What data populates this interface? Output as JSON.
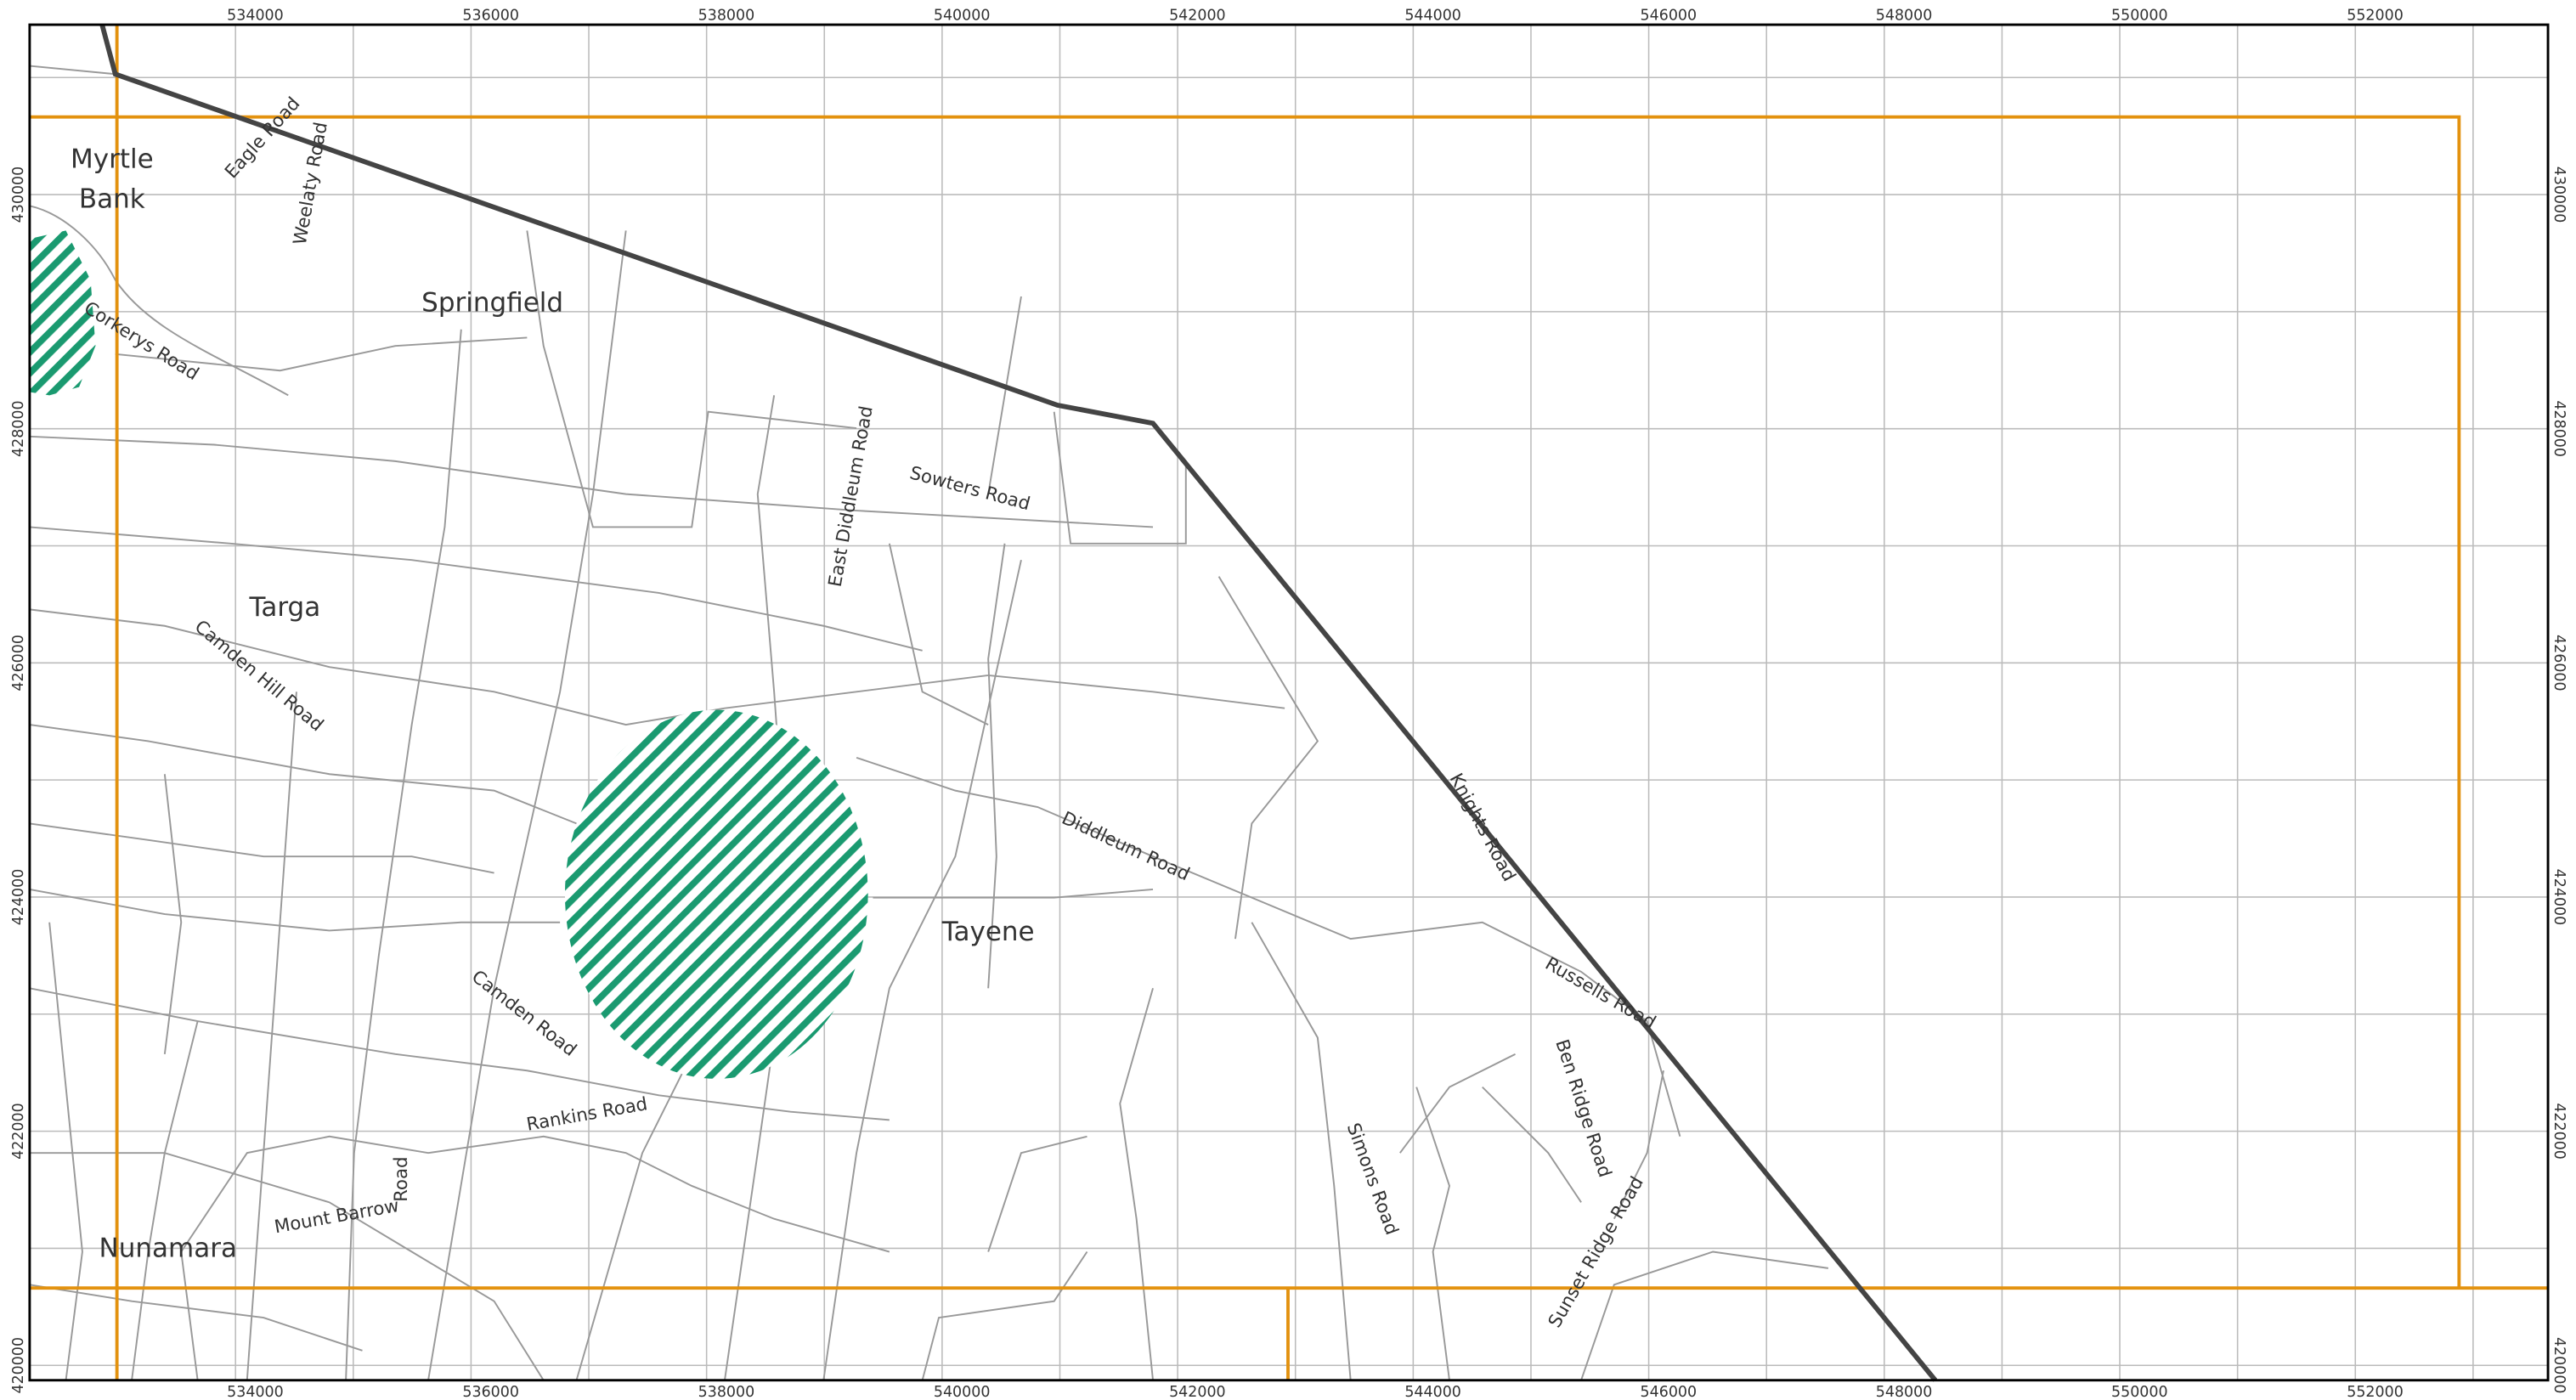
{
  "map": {
    "xlim": [
      532252,
      553636
    ],
    "ylim": [
      419873,
      431451
    ],
    "xticks": [
      534000,
      536000,
      538000,
      540000,
      542000,
      544000,
      546000,
      548000,
      550000,
      552000
    ],
    "yticks": [
      420000,
      422000,
      424000,
      426000,
      428000,
      430000
    ],
    "places": [
      [
        "Myrtle",
        "Bank"
      ],
      [
        "Springfield"
      ],
      [
        "Targa"
      ],
      [
        "Tayene"
      ],
      [
        "Nunamara"
      ]
    ],
    "roads": [
      "Eagle Road",
      "Weelaty Road",
      "Corkerys Road",
      "East Diddleum Road",
      "Sowters Road",
      "Camden Hill Road",
      "Diddleum Road",
      "Knights Road",
      "Russells Road",
      "Camden Road",
      "Rankins Road",
      "Ben Ridge Road",
      "Simons Road",
      "Mount Barrow",
      "Road",
      "Sunset Ridge Road"
    ]
  }
}
